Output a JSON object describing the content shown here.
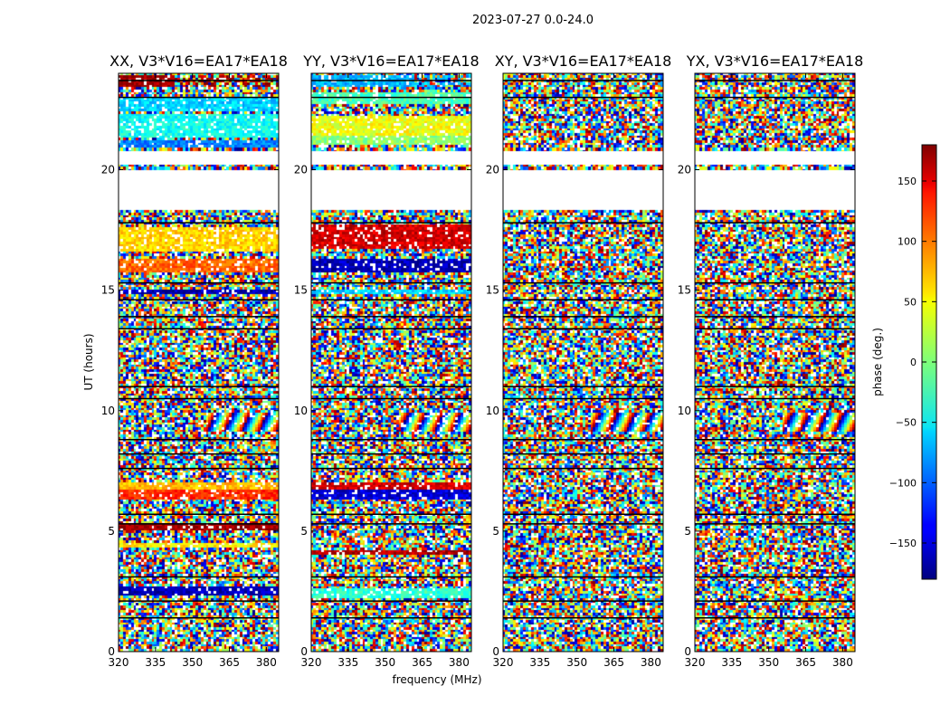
{
  "chart_data": {
    "type": "heatmap",
    "title": "2023-07-27 0.0-24.0",
    "xlabel": "frequency (MHz)",
    "ylabel": "UT (hours)",
    "x_range": [
      320,
      385
    ],
    "y_range": [
      0,
      24
    ],
    "x_ticks": [
      320,
      335,
      350,
      365,
      380
    ],
    "y_ticks": [
      0,
      5,
      10,
      15,
      20
    ],
    "colormap": "jet",
    "colorbar": {
      "label": "phase (deg.)",
      "range": [
        -180,
        180
      ],
      "ticks": [
        150,
        100,
        50,
        0,
        -50,
        -100,
        -150
      ],
      "tick_labels": [
        "150",
        "100",
        "50",
        "0",
        "−50",
        "−100",
        "−150"
      ]
    },
    "panels": [
      {
        "title": "XX, V3*V16=EA17*EA18",
        "bands": [
          {
            "y": [
              23.4,
              23.9
            ],
            "phase": 170,
            "split": 22.5
          },
          {
            "y": [
              22.4,
              23.0
            ],
            "phase": -60
          },
          {
            "y": [
              21.3,
              22.3
            ],
            "phase": -40
          },
          {
            "y": [
              20.9,
              21.2
            ],
            "phase": -90
          },
          {
            "y": [
              16.6,
              17.6
            ],
            "phase": 60
          },
          {
            "y": [
              15.7,
              16.3
            ],
            "phase": 100
          },
          {
            "y": [
              14.8,
              15.0
            ],
            "phase": -160
          },
          {
            "y": [
              6.7,
              7.0
            ],
            "phase": 70
          },
          {
            "y": [
              6.3,
              6.7
            ],
            "phase": 120
          },
          {
            "y": [
              5.0,
              5.3
            ],
            "phase": 170
          },
          {
            "y": [
              4.3,
              4.5
            ],
            "phase": 50
          },
          {
            "y": [
              2.3,
              2.7
            ],
            "phase": -160
          }
        ]
      },
      {
        "title": "YY, V3*V16=EA17*EA18",
        "bands": [
          {
            "y": [
              23.4,
              23.9
            ],
            "phase": -70,
            "split": 41
          },
          {
            "y": [
              22.7,
              23.2
            ],
            "phase": -20
          },
          {
            "y": [
              21.4,
              22.2
            ],
            "phase": 40
          },
          {
            "y": [
              21.0,
              21.4
            ],
            "phase": 5
          },
          {
            "y": [
              16.7,
              17.7
            ],
            "phase": 150
          },
          {
            "y": [
              15.7,
              16.3
            ],
            "phase": -160
          },
          {
            "y": [
              14.8,
              15.0
            ],
            "phase": -60
          },
          {
            "y": [
              6.7,
              7.0
            ],
            "phase": 150
          },
          {
            "y": [
              6.3,
              6.7
            ],
            "phase": -150
          },
          {
            "y": [
              4.0,
              4.2
            ],
            "phase": 160
          },
          {
            "y": [
              2.2,
              2.6
            ],
            "phase": -30
          }
        ]
      },
      {
        "title": "XY, V3*V16=EA17*EA18",
        "bands": []
      },
      {
        "title": "YX, V3*V16=EA17*EA18",
        "bands": []
      }
    ],
    "blank_ut_ranges": [
      [
        18.3,
        20.0
      ],
      [
        20.2,
        20.8
      ]
    ],
    "flagged_lines_ut": [
      23.7,
      23.0,
      17.8,
      15.3,
      14.6,
      13.9,
      13.4,
      11.0,
      10.5,
      8.8,
      8.2,
      7.6,
      5.7,
      5.3,
      3.1,
      2.1,
      1.4
    ],
    "fringe_pattern": {
      "x_from": 355,
      "y": [
        9.1,
        9.9
      ]
    }
  }
}
